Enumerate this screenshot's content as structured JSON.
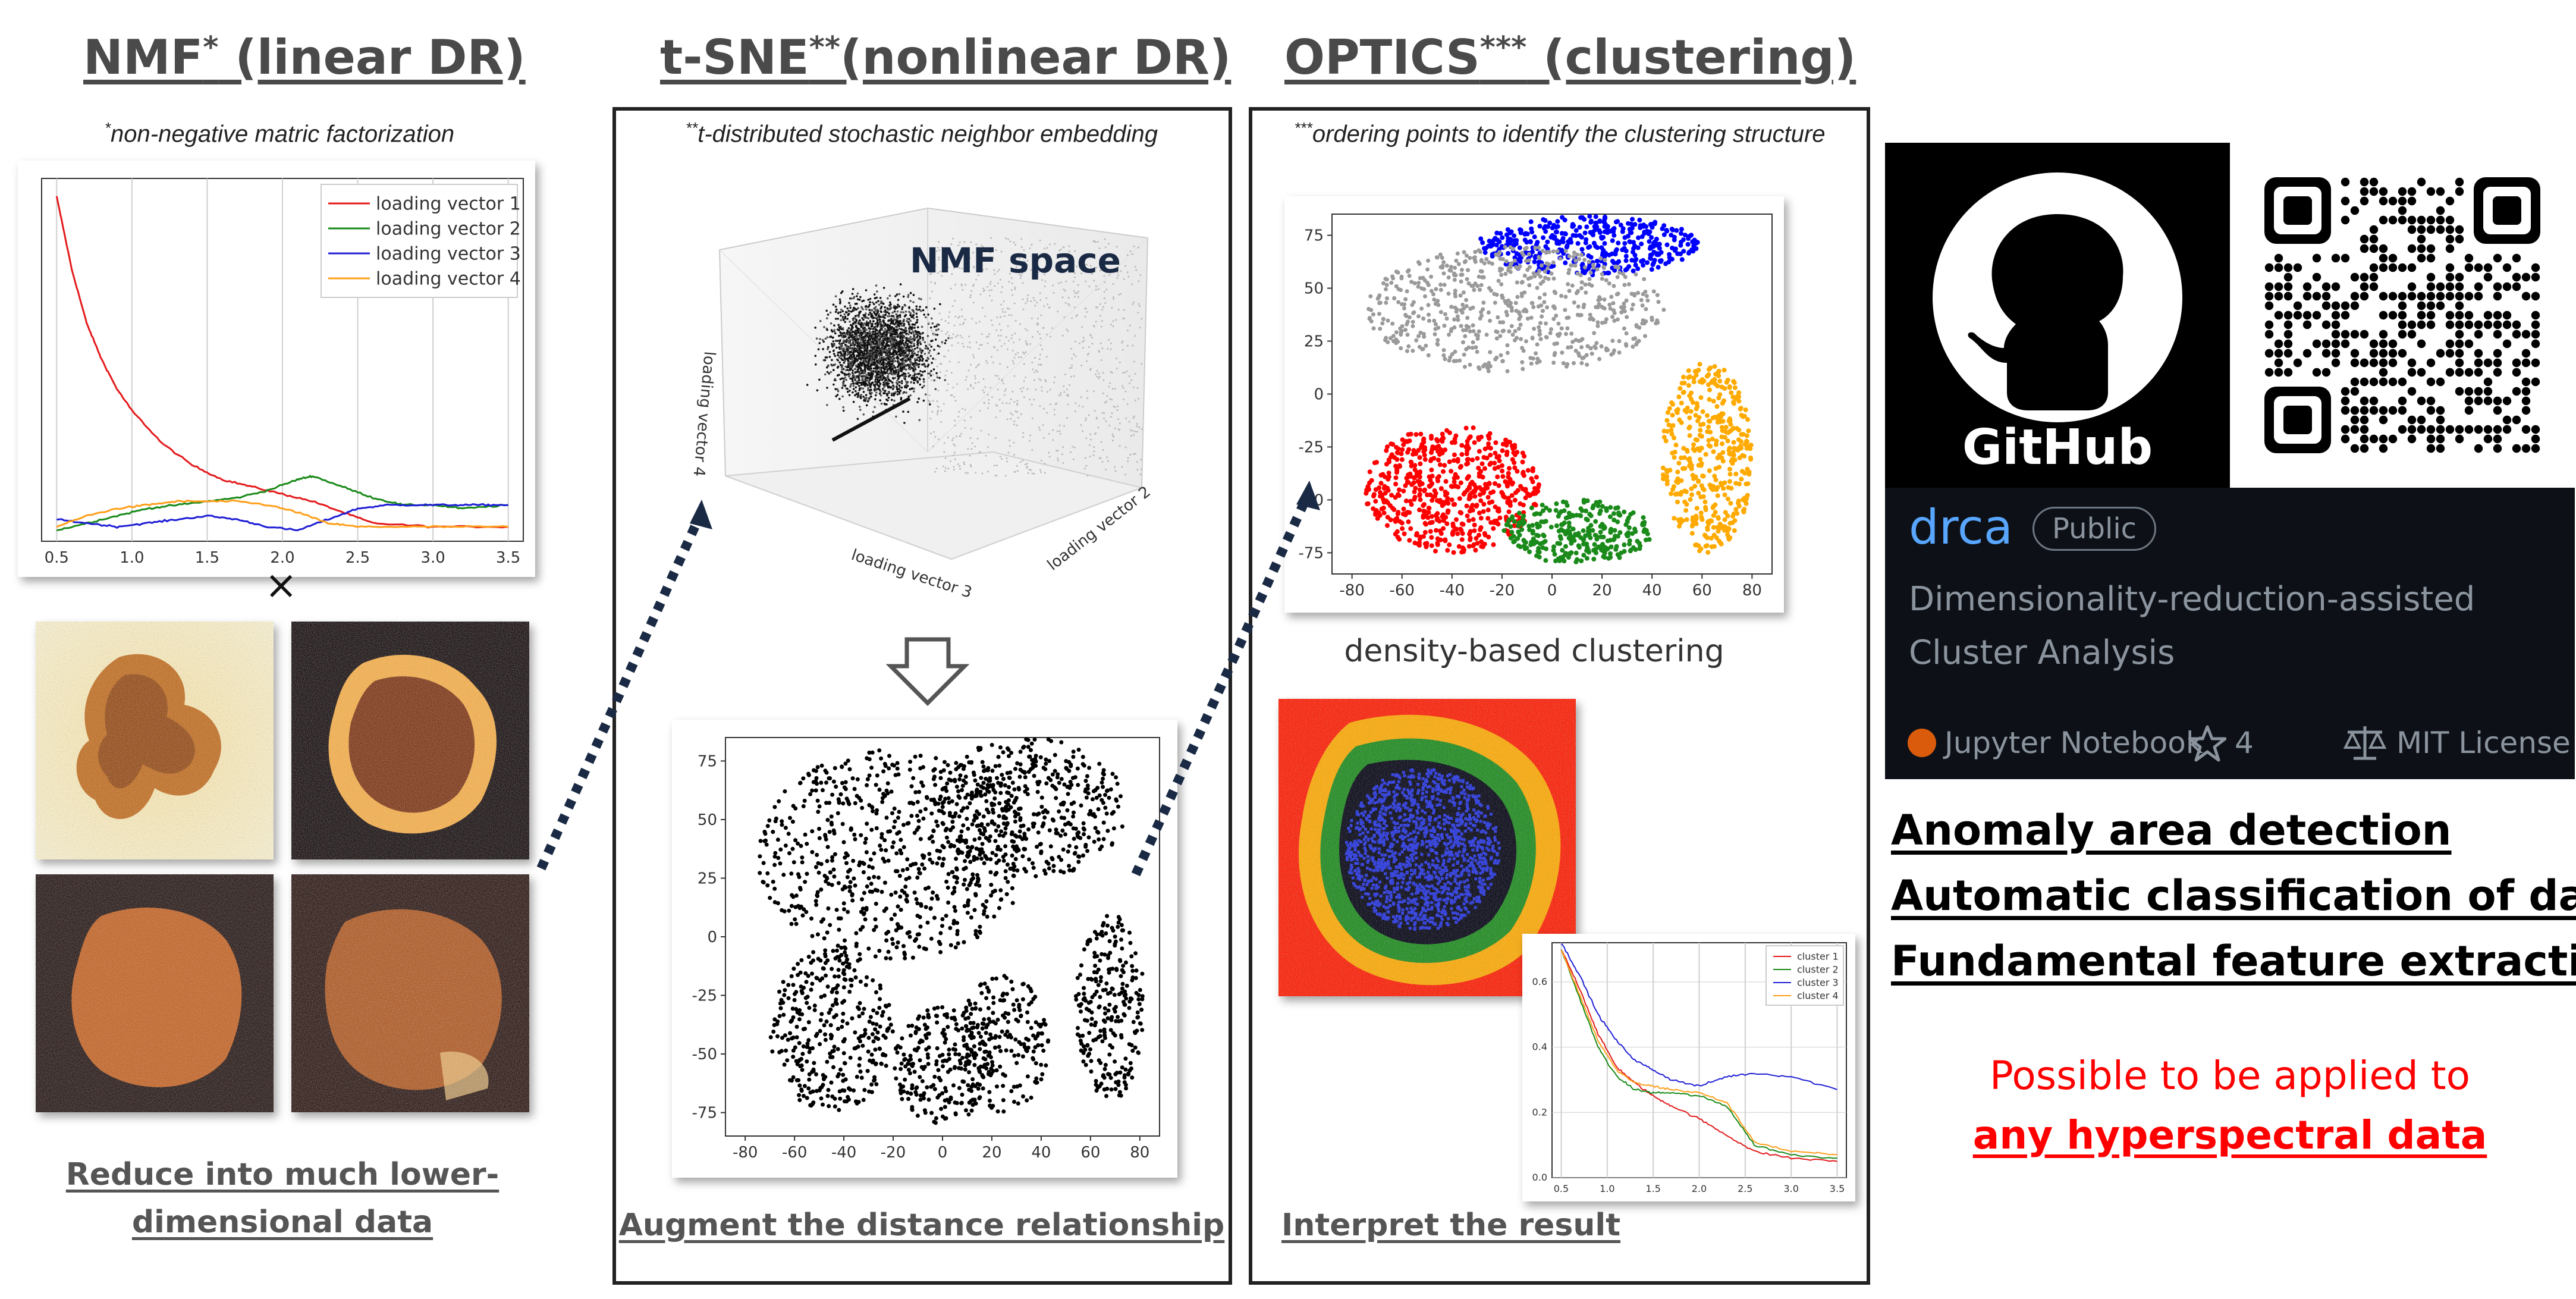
{
  "headings": {
    "nmf": {
      "main": "NMF",
      "sup": "*",
      "rest": " (linear DR)"
    },
    "tsne": {
      "main": "t-SNE",
      "sup": "**",
      "rest": "(nonlinear DR)"
    },
    "optics": {
      "main": "OPTICS",
      "sup": "***",
      "rest": " (clustering)"
    }
  },
  "notes": {
    "nmf": {
      "sup": "*",
      "text": "non-negative matric factorization"
    },
    "tsne": {
      "sup": "**",
      "text": "t-distributed stochastic neighbor embedding"
    },
    "optics": {
      "sup": "***",
      "text": "ordering points to identify the clustering structure"
    }
  },
  "captions": {
    "nmf": "Reduce into much lower-dimensional data",
    "tsne": "Augment the distance relationship",
    "optics_clustering": "density-based clustering",
    "optics_result": "Interpret the result"
  },
  "multiply_symbol": "×",
  "nmf_space_label": "NMF space",
  "axis3d": {
    "v3": "loading vector 3",
    "v2": "loading vector 2",
    "v4": "loading vector 4"
  },
  "github": {
    "logo_text": "GitHub",
    "repo_name": "drca",
    "visibility": "Public",
    "description_line1": "Dimensionality-reduction-assisted",
    "description_line2": "Cluster Analysis",
    "language": "Jupyter Notebook",
    "language_color": "#DA5B0B",
    "stars": "4",
    "license": "MIT License"
  },
  "applications": [
    "Anomaly area detection",
    "Automatic classification of data",
    "Fundamental feature extraction"
  ],
  "applicability": {
    "line1": "Possible to be applied to",
    "line2": "any hyperspectral data"
  },
  "chart_data": [
    {
      "type": "line",
      "x_ticks": [
        "0.5",
        "1.0",
        "1.5",
        "2.0",
        "2.5",
        "3.0",
        "3.5"
      ],
      "xlim": [
        0.4,
        3.6
      ],
      "grid": true,
      "legend_position": "top-right",
      "series": [
        {
          "name": "loading vector 1",
          "color": "#e41a1c",
          "x": [
            0.5,
            0.6,
            0.7,
            0.8,
            0.9,
            1.0,
            1.2,
            1.4,
            1.6,
            1.8,
            2.0,
            2.2,
            2.4,
            2.6,
            3.0,
            3.5
          ],
          "y": [
            0.95,
            0.75,
            0.6,
            0.5,
            0.42,
            0.36,
            0.27,
            0.21,
            0.17,
            0.15,
            0.13,
            0.11,
            0.08,
            0.05,
            0.04,
            0.04
          ]
        },
        {
          "name": "loading vector 2",
          "color": "#1a8a1a",
          "x": [
            0.5,
            0.7,
            0.9,
            1.1,
            1.3,
            1.5,
            1.7,
            1.9,
            2.1,
            2.2,
            2.4,
            2.6,
            2.8,
            3.0,
            3.2,
            3.5
          ],
          "y": [
            0.03,
            0.05,
            0.07,
            0.09,
            0.1,
            0.11,
            0.12,
            0.14,
            0.17,
            0.18,
            0.15,
            0.12,
            0.1,
            0.1,
            0.09,
            0.1
          ]
        },
        {
          "name": "loading vector 3",
          "color": "#1f1fd6",
          "x": [
            0.5,
            0.7,
            0.9,
            1.1,
            1.3,
            1.5,
            1.7,
            1.9,
            2.1,
            2.3,
            2.5,
            2.7,
            2.9,
            3.1,
            3.3,
            3.5
          ],
          "y": [
            0.06,
            0.05,
            0.04,
            0.05,
            0.06,
            0.07,
            0.06,
            0.04,
            0.03,
            0.06,
            0.09,
            0.1,
            0.1,
            0.1,
            0.1,
            0.1
          ]
        },
        {
          "name": "loading vector 4",
          "color": "#ff9f1a",
          "x": [
            0.5,
            0.7,
            0.9,
            1.1,
            1.3,
            1.5,
            1.7,
            1.9,
            2.1,
            2.3,
            2.5,
            2.8,
            3.1,
            3.5
          ],
          "y": [
            0.04,
            0.07,
            0.09,
            0.1,
            0.11,
            0.11,
            0.11,
            0.1,
            0.08,
            0.05,
            0.04,
            0.04,
            0.04,
            0.04
          ]
        }
      ]
    },
    {
      "type": "scatter",
      "x_ticks": [
        "-80",
        "-60",
        "-40",
        "-20",
        "0",
        "20",
        "40",
        "60",
        "80"
      ],
      "y_ticks": [
        "75",
        "50",
        "25",
        "0",
        "-25",
        "-50",
        "-75"
      ],
      "xlim": [
        -88,
        88
      ],
      "ylim": [
        -85,
        85
      ],
      "series": [
        {
          "name": "",
          "color": "#000000"
        }
      ]
    },
    {
      "type": "scatter",
      "x_ticks": [
        "-80",
        "-60",
        "-40",
        "-20",
        "0",
        "20",
        "40",
        "60",
        "80"
      ],
      "y_ticks": [
        "75",
        "50",
        "25",
        "0",
        "-25",
        "-50",
        "-75"
      ],
      "xlim": [
        -88,
        88
      ],
      "ylim": [
        -85,
        85
      ],
      "series": [
        {
          "name": "",
          "color": "#0000ff"
        },
        {
          "name": "",
          "color": "#9a9a9a"
        },
        {
          "name": "",
          "color": "#ff0000"
        },
        {
          "name": "",
          "color": "#1a8a1a"
        },
        {
          "name": "",
          "color": "#ffaa00"
        }
      ]
    },
    {
      "type": "line",
      "x_ticks": [
        "0.5",
        "1.0",
        "1.5",
        "2.0",
        "2.5",
        "3.0",
        "3.5"
      ],
      "y_ticks": [
        "0.6",
        "0.4",
        "0.2",
        "0.0"
      ],
      "xlim": [
        0.4,
        3.6
      ],
      "ylim": [
        0,
        0.72
      ],
      "grid": true,
      "legend_position": "top-right",
      "series": [
        {
          "name": "cluster 1",
          "color": "#e41a1c",
          "x": [
            0.5,
            0.7,
            0.9,
            1.1,
            1.3,
            1.5,
            1.7,
            2.0,
            2.3,
            2.6,
            3.0,
            3.5
          ],
          "y": [
            0.7,
            0.58,
            0.44,
            0.34,
            0.29,
            0.25,
            0.22,
            0.18,
            0.13,
            0.08,
            0.06,
            0.05
          ]
        },
        {
          "name": "cluster 2",
          "color": "#1a8a1a",
          "x": [
            0.5,
            0.7,
            0.9,
            1.1,
            1.3,
            1.5,
            1.7,
            2.0,
            2.3,
            2.6,
            3.0,
            3.5
          ],
          "y": [
            0.7,
            0.55,
            0.4,
            0.31,
            0.27,
            0.26,
            0.26,
            0.25,
            0.22,
            0.1,
            0.07,
            0.06
          ]
        },
        {
          "name": "cluster 3",
          "color": "#1f1fd6",
          "x": [
            0.5,
            0.7,
            0.9,
            1.1,
            1.3,
            1.5,
            1.7,
            2.0,
            2.3,
            2.6,
            3.0,
            3.5
          ],
          "y": [
            0.72,
            0.62,
            0.5,
            0.42,
            0.36,
            0.33,
            0.3,
            0.28,
            0.31,
            0.32,
            0.31,
            0.27
          ]
        },
        {
          "name": "cluster 4",
          "color": "#ff9f1a",
          "x": [
            0.5,
            0.7,
            0.9,
            1.1,
            1.3,
            1.5,
            1.7,
            2.0,
            2.3,
            2.6,
            3.0,
            3.5
          ],
          "y": [
            0.7,
            0.56,
            0.42,
            0.33,
            0.29,
            0.28,
            0.27,
            0.26,
            0.23,
            0.11,
            0.08,
            0.07
          ]
        }
      ]
    }
  ]
}
